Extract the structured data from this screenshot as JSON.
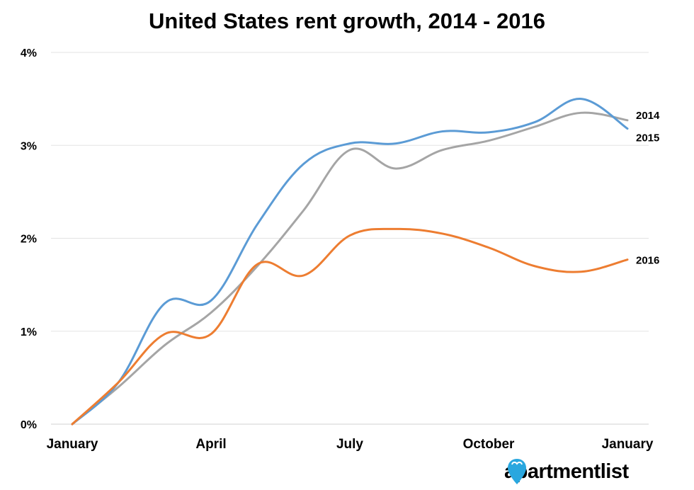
{
  "chart_data": {
    "type": "line",
    "title": "United States rent growth, 2014 - 2016",
    "xlabel": "",
    "ylabel": "",
    "x": [
      0,
      1,
      2,
      3,
      4,
      5,
      6,
      7,
      8,
      9,
      10,
      11,
      12
    ],
    "x_tick_labels": [
      {
        "x": 0,
        "label": "January"
      },
      {
        "x": 3,
        "label": "April"
      },
      {
        "x": 6,
        "label": "July"
      },
      {
        "x": 9,
        "label": "October"
      },
      {
        "x": 12,
        "label": "January"
      }
    ],
    "ylim": [
      0,
      4
    ],
    "y_ticks": [
      {
        "value": 0,
        "label": "0%"
      },
      {
        "value": 1,
        "label": "1%"
      },
      {
        "value": 2,
        "label": "2%"
      },
      {
        "value": 3,
        "label": "3%"
      },
      {
        "value": 4,
        "label": "4%"
      }
    ],
    "grid": true,
    "series": [
      {
        "name": "2014",
        "color": "#a5a5a5",
        "values": [
          0,
          0.4,
          0.85,
          1.2,
          1.7,
          2.3,
          2.95,
          2.75,
          2.95,
          3.05,
          3.2,
          3.35,
          3.27
        ]
      },
      {
        "name": "2015",
        "color": "#5b9bd5",
        "values": [
          0,
          0.45,
          1.3,
          1.33,
          2.15,
          2.8,
          3.02,
          3.02,
          3.15,
          3.14,
          3.25,
          3.5,
          3.18
        ]
      },
      {
        "name": "2016",
        "color": "#ed7d31",
        "values": [
          0,
          0.45,
          0.97,
          0.97,
          1.72,
          1.6,
          2.03,
          2.1,
          2.05,
          1.9,
          1.7,
          1.64,
          1.77
        ]
      }
    ]
  },
  "logo": {
    "text_left": "apartment",
    "text_right": "list",
    "pin_color": "#29a7df"
  }
}
